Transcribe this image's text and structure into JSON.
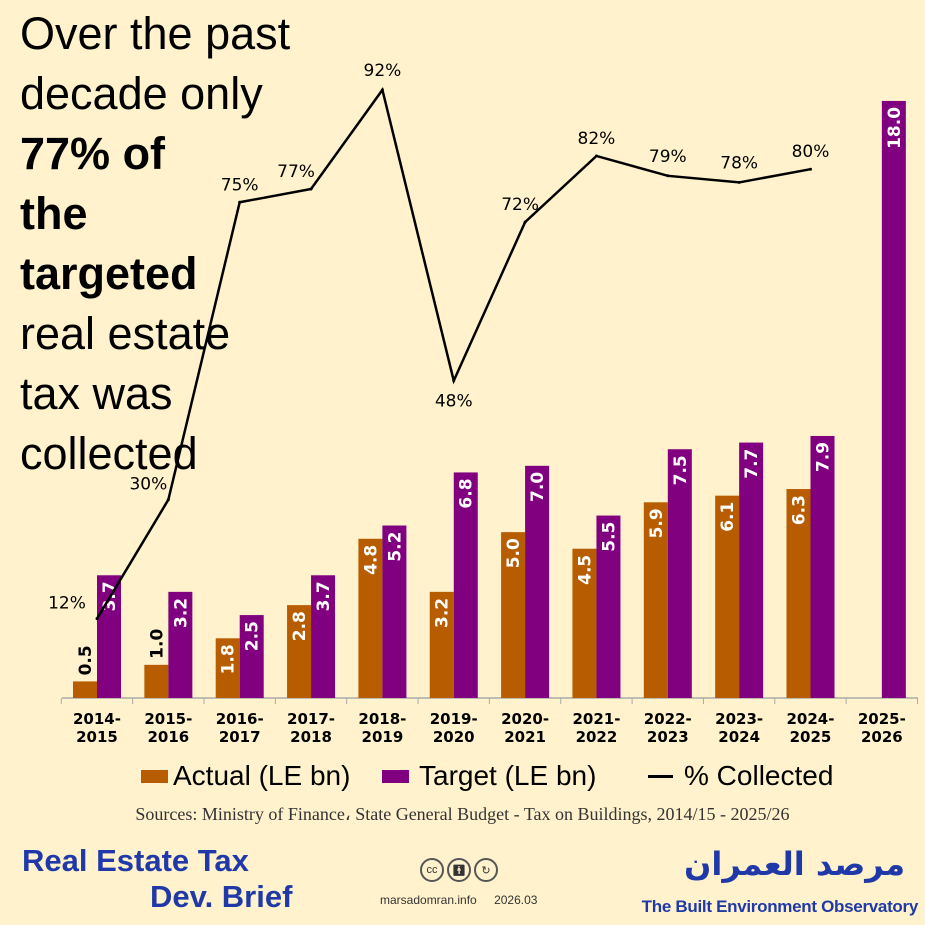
{
  "headline": {
    "l1": "Over the past",
    "l2": "decade only",
    "l3": "77% of",
    "l4": "the",
    "l5": "targeted",
    "l6": "real estate",
    "l7": "tax was",
    "l8": "collected"
  },
  "chart_data": {
    "type": "bar",
    "categories": [
      "2014-2015",
      "2015-2016",
      "2016-2017",
      "2017-2018",
      "2018-2019",
      "2019-2020",
      "2020-2021",
      "2021-2022",
      "2022-2023",
      "2023-2024",
      "2024-2025",
      "2025-2026"
    ],
    "series": [
      {
        "name": "Actual (LE bn)",
        "type": "bar",
        "color": "#b85c00",
        "values": [
          0.5,
          1.0,
          1.8,
          2.8,
          4.8,
          3.2,
          5.0,
          4.5,
          5.9,
          6.1,
          6.3,
          null
        ]
      },
      {
        "name": "Target (LE bn)",
        "type": "bar",
        "color": "#800080",
        "values": [
          3.7,
          3.2,
          2.5,
          3.7,
          5.2,
          6.8,
          7.0,
          5.5,
          7.5,
          7.7,
          7.9,
          18.0
        ]
      },
      {
        "name": "% Collected",
        "type": "line",
        "color": "#000000",
        "values": [
          12,
          30,
          75,
          77,
          92,
          48,
          72,
          82,
          79,
          78,
          80,
          null
        ]
      }
    ],
    "legend": "bottom"
  },
  "legend": {
    "actual": "Actual (LE bn)",
    "target": "Target (LE bn)",
    "pct": "% Collected"
  },
  "footer": {
    "sources": "Sources: Ministry of Finance، State General Budget - Tax on Buildings, 2014/15 - 2025/26",
    "brief1": "Real Estate Tax",
    "brief2": "Dev. Brief",
    "site": "marsadomran.info",
    "date": "2026.03",
    "arabic": "مرصد العمران",
    "observatory": "The Built Environment Observatory",
    "cc": "cc"
  }
}
